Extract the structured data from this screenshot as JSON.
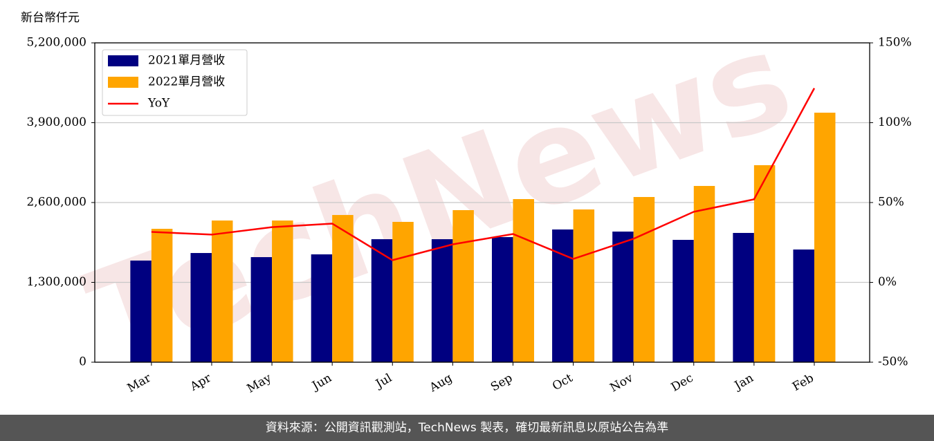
{
  "chart_data": {
    "type": "bar",
    "y_label": "新台幣仟元",
    "watermark": "TechNews",
    "footer": "資料來源：公開資訊觀測站，TechNews 製表，確切最新訊息以原站公告為準",
    "categories": [
      "Mar",
      "Apr",
      "May",
      "Jun",
      "Jul",
      "Aug",
      "Sep",
      "Oct",
      "Nov",
      "Dec",
      "Jan",
      "Feb"
    ],
    "series": [
      {
        "name": "2021單月營收",
        "color": "#000080",
        "values": [
          1655000,
          1778000,
          1711000,
          1756000,
          2003000,
          2003000,
          2037000,
          2161000,
          2127000,
          1992000,
          2105000,
          1835000
        ]
      },
      {
        "name": "2022單月營收",
        "color": "#ffa500",
        "values": [
          2172000,
          2307000,
          2307000,
          2397000,
          2285000,
          2476000,
          2656000,
          2487000,
          2690000,
          2870000,
          3208000,
          4063000
        ]
      },
      {
        "name": "YoY",
        "color": "#ff0000",
        "type": "line",
        "axis": "y2",
        "values": [
          31.6,
          29.9,
          34.6,
          36.8,
          13.9,
          23.8,
          30.3,
          14.7,
          27.3,
          44.2,
          52.0,
          121.6
        ]
      }
    ],
    "ylim": [
      0,
      5200000
    ],
    "yticks": [
      0,
      {
        "value": 1300000,
        "label": "1,300,000"
      },
      {
        "value": 2600000,
        "label": "2,600,000"
      },
      {
        "value": 3900000,
        "label": "3,900,000"
      },
      {
        "value": 5200000,
        "label": "5,200,000"
      }
    ],
    "y2lim": [
      -50,
      150
    ],
    "y2ticks": [
      {
        "value": -50,
        "label": "-50%"
      },
      {
        "value": 0,
        "label": "0%"
      },
      {
        "value": 50,
        "label": "50%"
      },
      {
        "value": 100,
        "label": "100%"
      },
      {
        "value": 150,
        "label": "150%"
      }
    ],
    "grid": true,
    "legend": "upper left"
  }
}
